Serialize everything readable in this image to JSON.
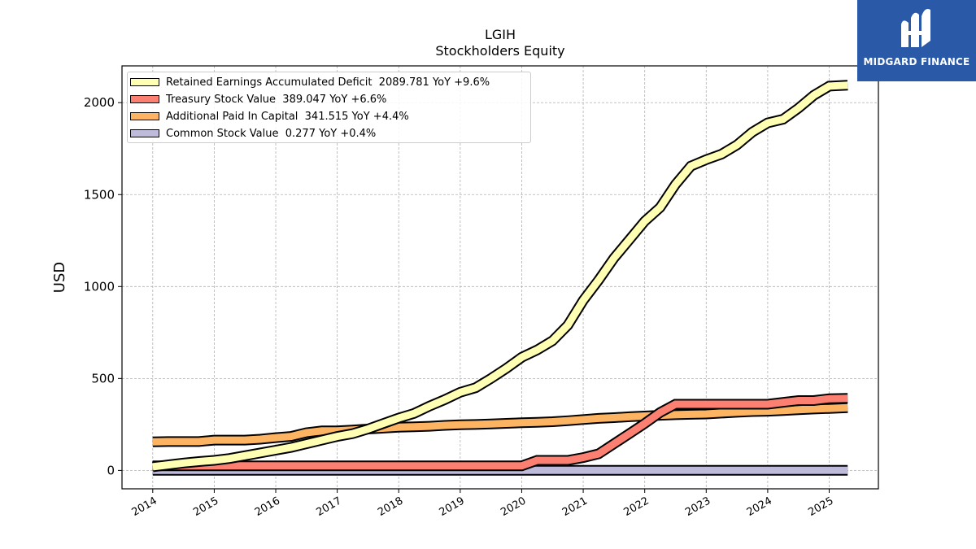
{
  "header": {
    "title": "LGIH",
    "subtitle": "Stockholders  Equity"
  },
  "logo": {
    "text": "MIDGARD FINANCE",
    "icon": "midgard-logo-icon",
    "color": "#2a59a8"
  },
  "chart_data": {
    "type": "area",
    "title": "LGIH",
    "subtitle": "Stockholders  Equity",
    "xlabel": "",
    "ylabel": "USD",
    "xlim": [
      2013.5,
      2025.8
    ],
    "ylim": [
      -100,
      2200
    ],
    "yticks": [
      0,
      500,
      1000,
      1500,
      2000
    ],
    "xticks": [
      "2014",
      "2015",
      "2016",
      "2017",
      "2018",
      "2019",
      "2020",
      "2021",
      "2022",
      "2023",
      "2024",
      "2025"
    ],
    "grid": true,
    "legend_position": "top-left",
    "stacked": false,
    "x": [
      2014.0,
      2014.25,
      2014.5,
      2014.75,
      2015.0,
      2015.25,
      2015.5,
      2015.75,
      2016.0,
      2016.25,
      2016.5,
      2016.75,
      2017.0,
      2017.25,
      2017.5,
      2017.75,
      2018.0,
      2018.25,
      2018.5,
      2018.75,
      2019.0,
      2019.25,
      2019.5,
      2019.75,
      2020.0,
      2020.25,
      2020.5,
      2020.75,
      2021.0,
      2021.25,
      2021.5,
      2021.75,
      2022.0,
      2022.25,
      2022.5,
      2022.75,
      2023.0,
      2023.25,
      2023.5,
      2023.75,
      2024.0,
      2024.25,
      2024.5,
      2024.75,
      2025.0,
      2025.3
    ],
    "series": [
      {
        "name": "Retained Earnings Accumulated Deficit",
        "legend_label": "Retained Earnings Accumulated Deficit  2089.781 YoY +9.6%",
        "color": "#ffffb3",
        "values": [
          20,
          30,
          40,
          48,
          55,
          65,
          80,
          95,
          110,
          125,
          145,
          165,
          185,
          200,
          225,
          255,
          285,
          310,
          350,
          385,
          425,
          450,
          500,
          555,
          615,
          655,
          705,
          790,
          925,
          1035,
          1155,
          1255,
          1355,
          1430,
          1555,
          1655,
          1690,
          1720,
          1770,
          1840,
          1890,
          1910,
          1970,
          2040,
          2090,
          2095
        ]
      },
      {
        "name": "Treasury Stock Value",
        "legend_label": "Treasury Stock Value  389.047 YoY +6.6%",
        "color": "#fb8072",
        "values": [
          25,
          25,
          25,
          25,
          25,
          25,
          25,
          25,
          25,
          25,
          25,
          25,
          25,
          25,
          25,
          25,
          25,
          25,
          25,
          25,
          25,
          25,
          25,
          25,
          25,
          55,
          55,
          55,
          70,
          90,
          145,
          200,
          255,
          315,
          360,
          360,
          360,
          360,
          360,
          360,
          360,
          370,
          380,
          380,
          390,
          392
        ]
      },
      {
        "name": "Additional Paid In Capital",
        "legend_label": "Additional Paid In Capital  341.515 YoY +4.4%",
        "color": "#fdb462",
        "values": [
          155,
          157,
          157,
          157,
          165,
          165,
          165,
          170,
          178,
          185,
          205,
          215,
          215,
          220,
          225,
          230,
          235,
          237,
          240,
          245,
          248,
          250,
          253,
          256,
          259,
          262,
          265,
          270,
          277,
          283,
          287,
          292,
          296,
          300,
          303,
          305,
          307,
          312,
          316,
          320,
          322,
          326,
          330,
          334,
          337,
          341
        ]
      },
      {
        "name": "Common Stock Value",
        "legend_label": "Common Stock Value  0.277 YoY +0.4%",
        "color": "#bebada",
        "values": [
          0.2,
          0.2,
          0.2,
          0.2,
          0.2,
          0.2,
          0.2,
          0.2,
          0.2,
          0.2,
          0.2,
          0.2,
          0.2,
          0.2,
          0.2,
          0.2,
          0.2,
          0.2,
          0.2,
          0.2,
          0.2,
          0.2,
          0.2,
          0.2,
          0.2,
          0.2,
          0.2,
          0.2,
          0.2,
          0.2,
          0.2,
          0.2,
          0.2,
          0.2,
          0.2,
          0.2,
          0.2,
          0.2,
          0.2,
          0.2,
          0.2,
          0.2,
          0.2,
          0.2,
          0.28,
          0.28
        ]
      }
    ]
  }
}
